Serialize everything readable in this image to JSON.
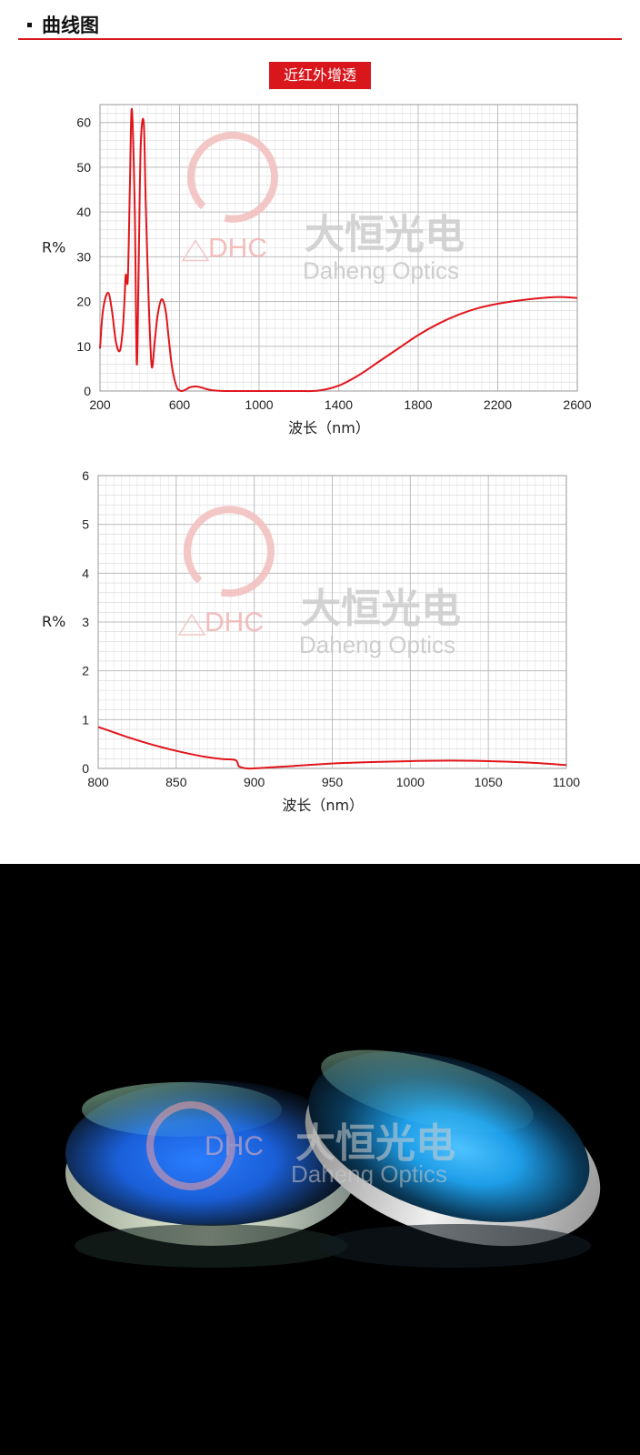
{
  "header": {
    "title": "曲线图"
  },
  "tag_label": "近红外增透",
  "watermark": {
    "logo_text": "DHC",
    "brand_cn": "大恒光电",
    "brand_en": "Daheng Optics"
  },
  "colors": {
    "accent": "#d9161c",
    "curve": "#e0161c",
    "grid": "#c8c8c8"
  },
  "chart_data": [
    {
      "type": "line",
      "ylabel": "R%",
      "xlabel": "波长（nm）",
      "xlim": [
        200,
        2600
      ],
      "ylim": [
        0,
        64
      ],
      "x_ticks": [
        200,
        600,
        1000,
        1400,
        1800,
        2200,
        2600
      ],
      "y_ticks": [
        0,
        10,
        20,
        30,
        40,
        50,
        60
      ],
      "grid": true,
      "series": [
        {
          "x": [
            200,
            215,
            240,
            260,
            280,
            300,
            315,
            325,
            330,
            340,
            350,
            360,
            375,
            385,
            395,
            405,
            420,
            430,
            445,
            460,
            475,
            490,
            510,
            530,
            545,
            560,
            575,
            590,
            610,
            630,
            650,
            670,
            690,
            710,
            730,
            760,
            800,
            850,
            900,
            1000,
            1100,
            1200,
            1300,
            1400,
            1500,
            1600,
            1700,
            1800,
            1900,
            2000,
            2100,
            2200,
            2300,
            2400,
            2500,
            2600
          ],
          "y": [
            9.5,
            18,
            22,
            18,
            11,
            9,
            14,
            22,
            26,
            25,
            45,
            63,
            40,
            6,
            30,
            55,
            60,
            42,
            20,
            5.5,
            11,
            17,
            20.5,
            18,
            12,
            6,
            2.5,
            0.5,
            0,
            0.3,
            0.8,
            1.0,
            1.0,
            0.8,
            0.5,
            0.2,
            0.05,
            0,
            0,
            0,
            0,
            0,
            0.1,
            1.2,
            3.5,
            6.5,
            9.5,
            12.5,
            15,
            17,
            18.5,
            19.5,
            20.2,
            20.7,
            21,
            20.8
          ]
        }
      ]
    },
    {
      "type": "line",
      "ylabel": "R%",
      "xlabel": "波长（nm）",
      "xlim": [
        800,
        1100
      ],
      "ylim": [
        0,
        6
      ],
      "x_ticks": [
        800,
        850,
        900,
        950,
        1000,
        1050,
        1100
      ],
      "y_ticks": [
        0,
        1,
        2,
        3,
        4,
        5,
        6
      ],
      "grid": true,
      "series": [
        {
          "x": [
            800,
            810,
            820,
            830,
            840,
            850,
            860,
            870,
            880,
            888,
            890,
            892,
            895,
            900,
            910,
            925,
            950,
            975,
            1000,
            1025,
            1050,
            1075,
            1100
          ],
          "y": [
            0.85,
            0.74,
            0.63,
            0.53,
            0.44,
            0.36,
            0.29,
            0.23,
            0.19,
            0.17,
            0.05,
            0.02,
            0.0,
            0.0,
            0.02,
            0.05,
            0.1,
            0.13,
            0.15,
            0.16,
            0.15,
            0.12,
            0.07
          ]
        }
      ]
    }
  ]
}
